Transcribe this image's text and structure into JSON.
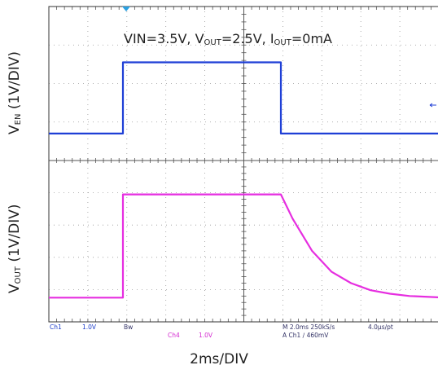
{
  "title": {
    "vin": "VIN=3.5V, V",
    "vout_sub": "OUT",
    "vout_rest": "=2.5V, I",
    "iout_sub": "OUT",
    "iout_rest": "=0mA"
  },
  "ylabel_top": {
    "main": "V",
    "sub": "EN",
    "rest": " (1V/DIV)"
  },
  "ylabel_bottom": {
    "main": "V",
    "sub": "OUT",
    "rest": " (1V/DIV)"
  },
  "xlabel": "2ms/DIV",
  "status": {
    "ch1": "Ch1",
    "ch1_scale": "1.0V",
    "bw": "Bw",
    "ch4": "Ch4",
    "ch4_scale": "1.0V",
    "timebase": "M 2.0ms 250kS/s",
    "pt": "4.0μs/pt",
    "trigger": "A  Ch1  ∕  460mV"
  },
  "colors": {
    "ch1": "#1f3fd6",
    "ch4": "#e62ee0",
    "grid": "#555555",
    "status_ch1": "#1a3bc9",
    "status_ch4": "#d42bd0",
    "status_dark": "#333366"
  },
  "chart_data": {
    "type": "line",
    "xlabel": "2ms/DIV",
    "x_unit": "ms",
    "xlim": [
      -8,
      12
    ],
    "divisions": {
      "x": 10,
      "y_top": 4,
      "y_bottom": 5
    },
    "series": [
      {
        "name": "VEN",
        "panel": "top",
        "ylabel": "VEN (1V/DIV)",
        "ylim": [
          0,
          4
        ],
        "points": [
          [
            -8,
            0.7
          ],
          [
            -4.2,
            0.7
          ],
          [
            -4.2,
            2.55
          ],
          [
            3.9,
            2.55
          ],
          [
            3.9,
            0.7
          ],
          [
            12,
            0.7
          ]
        ]
      },
      {
        "name": "VOUT",
        "panel": "bottom",
        "ylabel": "VOUT (1V/DIV)",
        "ylim": [
          0,
          5
        ],
        "points": [
          [
            -8,
            0.75
          ],
          [
            -4.2,
            0.75
          ],
          [
            -4.2,
            3.95
          ],
          [
            3.9,
            3.95
          ],
          [
            4.5,
            3.2
          ],
          [
            5.5,
            2.2
          ],
          [
            6.5,
            1.55
          ],
          [
            7.5,
            1.2
          ],
          [
            8.5,
            0.98
          ],
          [
            9.5,
            0.87
          ],
          [
            10.5,
            0.8
          ],
          [
            12,
            0.76
          ]
        ]
      }
    ]
  }
}
